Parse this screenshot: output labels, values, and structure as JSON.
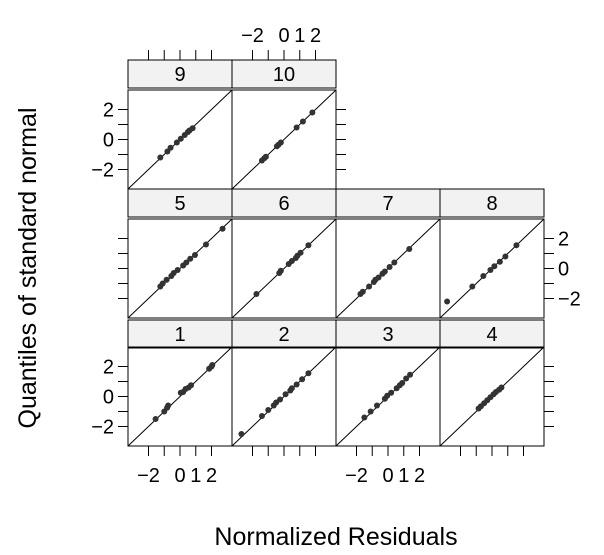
{
  "chart_data": {
    "type": "scatter",
    "xlabel": "Normalized Residuals",
    "ylabel": "Quantiles of standard normal",
    "xlim": [
      -3.3,
      3.3
    ],
    "ylim": [
      -3.3,
      3.3
    ],
    "x_ticks": [
      -2,
      -1,
      0,
      1,
      2
    ],
    "x_tick_labels": [
      "−2",
      "",
      "0",
      "1",
      "2"
    ],
    "y_ticks": [
      -2,
      -1,
      0,
      1,
      2
    ],
    "y_tick_labels": [
      "−2",
      "",
      "0",
      "",
      "2"
    ],
    "reference_line": "y = x",
    "panels": [
      {
        "label": "1",
        "row": 1,
        "col": 1,
        "x": [
          -1.55,
          -1.0,
          -0.82,
          -0.75,
          0.05,
          0.2,
          0.35,
          0.55,
          0.7,
          1.85,
          2.0,
          2.05
        ],
        "y": [
          -1.5,
          -1.0,
          -0.75,
          -0.6,
          0.25,
          0.3,
          0.5,
          0.6,
          0.75,
          1.85,
          2.0,
          2.1
        ]
      },
      {
        "label": "2",
        "row": 1,
        "col": 2,
        "x": [
          -2.7,
          -1.4,
          -1.0,
          -0.65,
          -0.5,
          -0.25,
          0.1,
          0.4,
          0.5,
          0.8,
          1.15,
          1.55
        ],
        "y": [
          -2.5,
          -1.3,
          -0.9,
          -0.6,
          -0.4,
          -0.2,
          0.15,
          0.4,
          0.55,
          0.8,
          1.15,
          1.55
        ]
      },
      {
        "label": "3",
        "row": 1,
        "col": 3,
        "x": [
          -1.5,
          -1.1,
          -0.7,
          -0.2,
          -0.05,
          0.2,
          0.55,
          0.75,
          0.9,
          1.15,
          1.4
        ],
        "y": [
          -1.4,
          -1.0,
          -0.6,
          -0.15,
          0.05,
          0.25,
          0.55,
          0.75,
          0.9,
          1.2,
          1.45
        ]
      },
      {
        "label": "4",
        "row": 1,
        "col": 4,
        "x": [
          -0.85,
          -0.7,
          -0.5,
          -0.3,
          -0.1,
          0.1,
          0.25,
          0.45,
          0.6
        ],
        "y": [
          -0.8,
          -0.65,
          -0.45,
          -0.25,
          -0.05,
          0.15,
          0.3,
          0.45,
          0.6
        ]
      },
      {
        "label": "5",
        "row": 2,
        "col": 1,
        "x": [
          -1.25,
          -1.1,
          -0.85,
          -0.55,
          -0.4,
          -0.15,
          0.2,
          0.4,
          0.65,
          0.95,
          1.65,
          2.7
        ],
        "y": [
          -1.2,
          -1.0,
          -0.75,
          -0.5,
          -0.3,
          -0.1,
          0.2,
          0.4,
          0.65,
          0.9,
          1.6,
          2.65
        ]
      },
      {
        "label": "6",
        "row": 2,
        "col": 2,
        "x": [
          -1.75,
          -0.3,
          -0.2,
          0.3,
          0.5,
          0.75,
          0.85,
          1.05,
          1.55
        ],
        "y": [
          -1.7,
          -0.3,
          -0.15,
          0.3,
          0.5,
          0.7,
          0.85,
          1.05,
          1.55
        ]
      },
      {
        "label": "7",
        "row": 2,
        "col": 3,
        "x": [
          -1.75,
          -1.6,
          -1.2,
          -0.9,
          -0.8,
          -0.6,
          -0.35,
          -0.2,
          0.1,
          0.4,
          1.35
        ],
        "y": [
          -1.7,
          -1.55,
          -1.2,
          -0.9,
          -0.75,
          -0.6,
          -0.35,
          -0.2,
          0.1,
          0.4,
          1.3
        ]
      },
      {
        "label": "8",
        "row": 2,
        "col": 4,
        "x": [
          -2.85,
          -1.25,
          -0.55,
          -0.1,
          0.15,
          0.5,
          0.85,
          1.55
        ],
        "y": [
          -2.2,
          -1.2,
          -0.5,
          -0.1,
          0.15,
          0.45,
          0.8,
          1.55
        ]
      },
      {
        "label": "9",
        "row": 3,
        "col": 1,
        "x": [
          -1.25,
          -0.8,
          -0.6,
          -0.2,
          0.05,
          0.3,
          0.5,
          0.6,
          0.8
        ],
        "y": [
          -1.2,
          -0.8,
          -0.55,
          -0.2,
          0.05,
          0.3,
          0.5,
          0.6,
          0.75
        ]
      },
      {
        "label": "10",
        "row": 3,
        "col": 2,
        "x": [
          -1.4,
          -1.25,
          -1.15,
          -0.45,
          -0.35,
          -0.2,
          0.8,
          1.2,
          1.8
        ],
        "y": [
          -1.4,
          -1.25,
          -1.15,
          -0.45,
          -0.35,
          -0.2,
          0.8,
          1.2,
          1.8
        ]
      }
    ]
  }
}
